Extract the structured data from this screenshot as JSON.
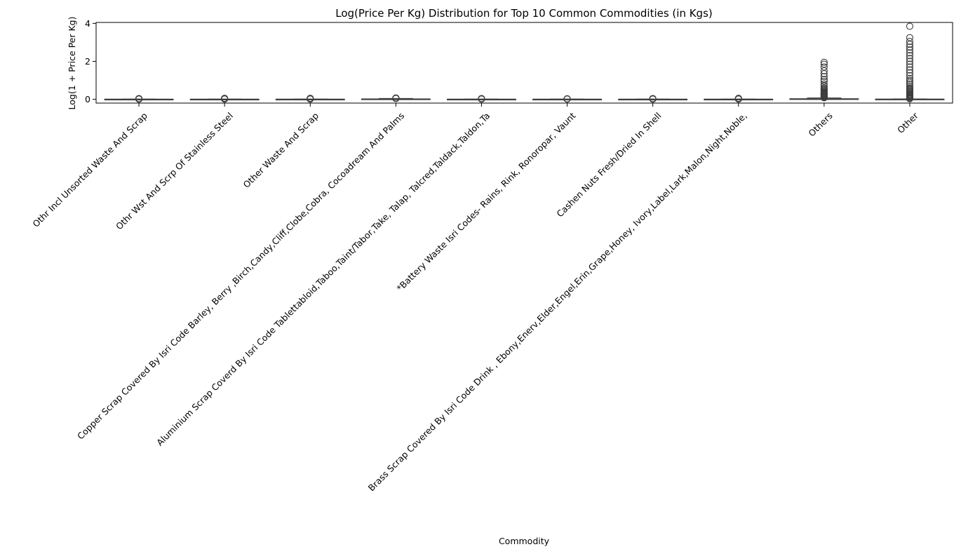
{
  "chart_data": {
    "type": "box",
    "title": "Log(Price Per Kg) Distribution for Top 10 Common Commodities (in Kgs)",
    "xlabel": "Commodity",
    "ylabel": "Log(1 + Price Per Kg)",
    "ylim": [
      -0.2,
      4.05
    ],
    "yticks": [
      0,
      2,
      4
    ],
    "grid": false,
    "categories": [
      "Othr Incl Unsorted Waste And Scrap",
      "Othr Wst And Scrp Of Stainless Steel",
      "Other Waste And Scrap",
      "Copper Scrap Covered By Isri Code Barley, Berry ,Birch,Candy,Cliff,Clobe,Cobra, Cocoadream And Palms",
      "Aluminium Scrap Coverd By Isri Code Tablettabloid,Taboo,Taint/Tabor,Take, Talap, Talcred,Taldack,Taldon,Ta",
      "*Battery Waste Isri Codes- Rains, Rink, Ronoropar, Vaunt",
      "Cashen Nuts Fresh/Dried In Shell",
      "Brass Scrap Covered By Isri Code Drink , Ebony,Enerv,Elder,Engel,Erin,Grape,Honey, Ivory,Label,Lark,Malon,Night,Noble,",
      "Others",
      "Other"
    ],
    "boxes": [
      {
        "q1": 0.0,
        "median": 0.0,
        "q3": 0.005,
        "whisker_low": 0.0,
        "whisker_high": 0.01,
        "outliers": [
          0.01,
          0.015,
          0.02,
          0.03,
          0.04
        ]
      },
      {
        "q1": 0.0,
        "median": 0.0,
        "q3": 0.005,
        "whisker_low": 0.0,
        "whisker_high": 0.01,
        "outliers": [
          0.01,
          0.02,
          0.03,
          0.04,
          0.05
        ]
      },
      {
        "q1": 0.0,
        "median": 0.0,
        "q3": 0.005,
        "whisker_low": 0.0,
        "whisker_high": 0.01,
        "outliers": [
          0.01,
          0.02,
          0.03,
          0.04,
          0.05
        ]
      },
      {
        "q1": 0.005,
        "median": 0.01,
        "q3": 0.02,
        "whisker_low": 0.0,
        "whisker_high": 0.04,
        "outliers": [
          0.04,
          0.05,
          0.06,
          0.07
        ]
      },
      {
        "q1": 0.0,
        "median": 0.0,
        "q3": 0.005,
        "whisker_low": 0.0,
        "whisker_high": 0.01,
        "outliers": [
          0.01,
          0.02,
          0.03,
          0.04
        ]
      },
      {
        "q1": 0.0,
        "median": 0.0,
        "q3": 0.005,
        "whisker_low": 0.0,
        "whisker_high": 0.01,
        "outliers": [
          0.01,
          0.02,
          0.03
        ]
      },
      {
        "q1": 0.0,
        "median": 0.0,
        "q3": 0.005,
        "whisker_low": 0.0,
        "whisker_high": 0.01,
        "outliers": [
          0.01,
          0.02,
          0.03,
          0.04
        ]
      },
      {
        "q1": 0.0,
        "median": 0.0,
        "q3": 0.005,
        "whisker_low": 0.0,
        "whisker_high": 0.01,
        "outliers": [
          0.01,
          0.02,
          0.03,
          0.04,
          0.05
        ]
      },
      {
        "q1": 0.0,
        "median": 0.01,
        "q3": 0.03,
        "whisker_low": 0.0,
        "whisker_high": 0.07,
        "outliers": [
          0.08,
          0.1,
          0.12,
          0.15,
          0.18,
          0.2,
          0.22,
          0.25,
          0.28,
          0.3,
          0.33,
          0.36,
          0.4,
          0.45,
          0.5,
          0.55,
          0.6,
          0.7,
          0.8,
          0.95,
          1.05,
          1.2,
          1.35,
          1.5,
          1.7,
          1.85,
          1.95
        ]
      },
      {
        "q1": 0.0,
        "median": 0.0,
        "q3": 0.01,
        "whisker_low": 0.0,
        "whisker_high": 0.02,
        "outliers": [
          0.03,
          0.06,
          0.1,
          0.14,
          0.18,
          0.22,
          0.26,
          0.3,
          0.35,
          0.4,
          0.45,
          0.5,
          0.55,
          0.6,
          0.7,
          0.8,
          0.9,
          1.0,
          1.1,
          1.25,
          1.4,
          1.55,
          1.7,
          1.85,
          2.0,
          2.15,
          2.3,
          2.45,
          2.6,
          2.75,
          2.9,
          3.05,
          3.25,
          3.85
        ]
      }
    ],
    "style": {
      "box_fill": "#1f77b4",
      "line_color": "#3d3d3d",
      "outlier_color": "#3d3d3d"
    }
  }
}
